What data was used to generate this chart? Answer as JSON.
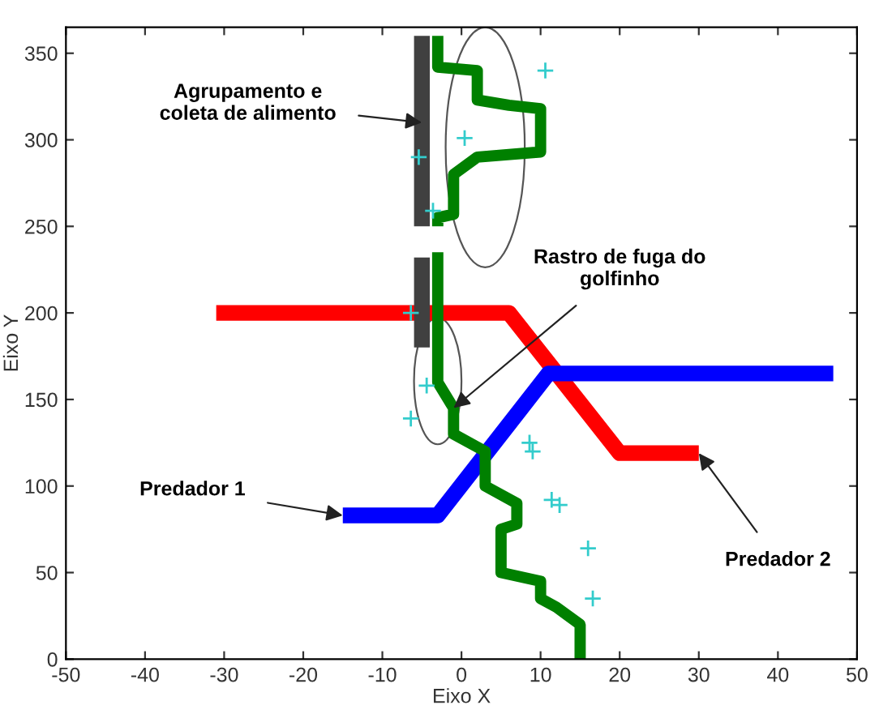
{
  "chart_data": {
    "type": "line",
    "xlabel": "Eixo X",
    "ylabel": "Eixo Y",
    "xlim": [
      -50,
      50
    ],
    "ylim": [
      0,
      365
    ],
    "xticks": [
      -50,
      -40,
      -30,
      -20,
      -10,
      0,
      10,
      20,
      30,
      40,
      50
    ],
    "yticks": [
      0,
      50,
      100,
      150,
      200,
      250,
      300,
      350
    ],
    "grid": false,
    "legend": false,
    "series": [
      {
        "color": "#ff0000",
        "x": [
          -31,
          6,
          20,
          30
        ],
        "values": [
          200,
          200,
          119,
          119
        ]
      },
      {
        "color": "#0000ff",
        "x": [
          -15,
          -3,
          11,
          47
        ],
        "values": [
          83,
          83,
          165,
          165
        ]
      },
      {
        "color": "#404040",
        "x": [
          -5,
          -5
        ],
        "values": [
          250,
          360
        ]
      },
      {
        "color": "#404040",
        "x": [
          -5,
          -5
        ],
        "values": [
          180,
          232
        ]
      },
      {
        "color": "#008000",
        "x": [
          15,
          15,
          12,
          10,
          10,
          5,
          5,
          7,
          7,
          3,
          3,
          -1,
          -1,
          -3,
          -3,
          -3
        ],
        "values": [
          0,
          20,
          30,
          35,
          45,
          50,
          75,
          78,
          90,
          100,
          120,
          130,
          145,
          160,
          200,
          235
        ]
      },
      {
        "color": "#008000",
        "x": [
          -3,
          -3,
          -1,
          -1,
          2,
          10,
          10,
          6,
          2,
          2,
          -3,
          -3
        ],
        "values": [
          250,
          255,
          257,
          280,
          290,
          293,
          318,
          320,
          323,
          340,
          342,
          360
        ]
      },
      {
        "type": "scatter",
        "color": "#33cccc",
        "marker": "cross",
        "x": [
          10.6,
          0.4,
          -5.4,
          -3.6,
          -6.4,
          -4.4,
          -6.4,
          9,
          8.6,
          11.4,
          12.4,
          16,
          16.6
        ],
        "values": [
          340,
          301,
          290,
          259,
          200,
          158,
          139,
          120,
          125,
          92,
          89,
          64,
          35
        ]
      }
    ],
    "annotations": [
      {
        "text": "Agrupamento e\ncoleta de alimento",
        "x": -5,
        "y": 310
      },
      {
        "text": "Rastro de fuga do\ngolfinho",
        "x": -1,
        "y": 145
      },
      {
        "text": "Predador 1",
        "x": -15,
        "y": 83
      },
      {
        "text": "Predador 2",
        "x": 30,
        "y": 119
      }
    ]
  }
}
